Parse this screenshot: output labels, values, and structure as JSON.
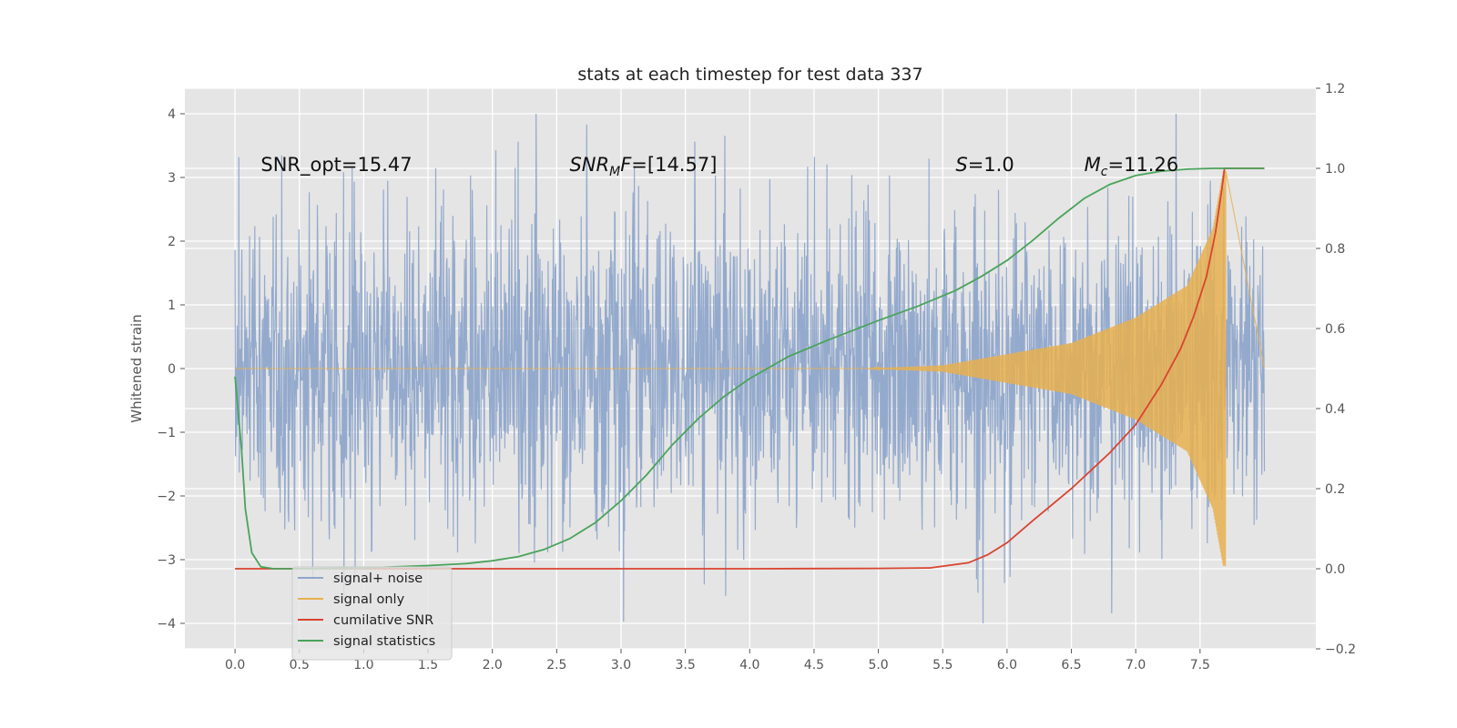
{
  "chart_data": {
    "type": "line",
    "title": "stats at each timestep for test data 337",
    "ylabel": "Whitened strain",
    "xlim": [
      -0.39,
      8.4
    ],
    "ylim": [
      -4.4,
      4.4
    ],
    "y2lim": [
      -0.2,
      1.2
    ],
    "grid": true,
    "legend_position": "lower-left",
    "x_ticks": [
      0.0,
      0.5,
      1.0,
      1.5,
      2.0,
      2.5,
      3.0,
      3.5,
      4.0,
      4.5,
      5.0,
      5.5,
      6.0,
      6.5,
      7.0,
      7.5
    ],
    "x_tick_labels": [
      "0.0",
      "0.5",
      "1.0",
      "1.5",
      "2.0",
      "2.5",
      "3.0",
      "3.5",
      "4.0",
      "4.5",
      "5.0",
      "5.5",
      "6.0",
      "6.5",
      "7.0",
      "7.5"
    ],
    "y_ticks": [
      -4,
      -3,
      -2,
      -1,
      0,
      1,
      2,
      3,
      4
    ],
    "y_tick_labels": [
      "−4",
      "−3",
      "−2",
      "−1",
      "0",
      "1",
      "2",
      "3",
      "4"
    ],
    "y2_ticks": [
      -0.2,
      0.0,
      0.2,
      0.4,
      0.6,
      0.8,
      1.0,
      1.2
    ],
    "y2_tick_labels": [
      "−0.2",
      "0.0",
      "0.2",
      "0.4",
      "0.6",
      "0.8",
      "1.0",
      "1.2"
    ],
    "annotations": [
      {
        "x": 0.2,
        "y": 3.2,
        "segments": [
          {
            "t": "SNR_opt=15.47",
            "i": false
          }
        ]
      },
      {
        "x": 2.6,
        "y": 3.2,
        "segments": [
          {
            "t": "SNR",
            "i": true
          },
          {
            "t": "M",
            "i": true,
            "sub": true
          },
          {
            "t": "F",
            "i": true
          },
          {
            "t": "=[14.57]",
            "i": false
          }
        ]
      },
      {
        "x": 5.6,
        "y": 3.2,
        "segments": [
          {
            "t": "S",
            "i": true
          },
          {
            "t": "=1.0",
            "i": false
          }
        ]
      },
      {
        "x": 6.6,
        "y": 3.2,
        "segments": [
          {
            "t": "M",
            "i": true
          },
          {
            "t": "c",
            "i": true,
            "sub": true
          },
          {
            "t": "=11.26",
            "i": false
          }
        ]
      }
    ],
    "series": [
      {
        "name": "signal+ noise",
        "color": "#8fa6cb",
        "axis": "left",
        "kind": "noise",
        "x_range": [
          0.0,
          8.0
        ],
        "typical_range": [
          -2.5,
          2.5
        ],
        "extreme_range": [
          -4.0,
          4.0
        ]
      },
      {
        "name": "signal only",
        "color": "#e8b04f",
        "axis": "left",
        "kind": "chirp",
        "x_range": [
          0.0,
          7.7
        ],
        "peak_amplitude": 3.1,
        "chirp_envelope": [
          [
            5.5,
            0.05
          ],
          [
            6.5,
            0.4
          ],
          [
            7.0,
            0.8
          ],
          [
            7.4,
            1.3
          ],
          [
            7.6,
            2.2
          ],
          [
            7.68,
            3.1
          ]
        ]
      },
      {
        "name": "cumilative SNR",
        "color": "#d9442f",
        "axis": "right",
        "x": [
          0.0,
          1.0,
          2.0,
          3.0,
          4.0,
          5.0,
          5.4,
          5.7,
          5.85,
          6.0,
          6.2,
          6.5,
          6.8,
          7.0,
          7.2,
          7.35,
          7.45,
          7.55,
          7.62,
          7.67,
          7.69,
          8.0
        ],
        "y": [
          0.0,
          0.0,
          0.0,
          0.0,
          0.0,
          0.001,
          0.002,
          0.015,
          0.035,
          0.065,
          0.12,
          0.2,
          0.29,
          0.36,
          0.46,
          0.55,
          0.63,
          0.73,
          0.84,
          0.95,
          1.0,
          1.0
        ]
      },
      {
        "name": "signal statistics",
        "color": "#4aa35b",
        "axis": "right",
        "x": [
          0.0,
          0.05,
          0.08,
          0.13,
          0.2,
          0.3,
          0.5,
          1.0,
          1.5,
          1.8,
          2.0,
          2.2,
          2.4,
          2.6,
          2.8,
          3.0,
          3.2,
          3.4,
          3.6,
          3.8,
          4.0,
          4.3,
          4.6,
          5.0,
          5.3,
          5.6,
          5.8,
          6.0,
          6.2,
          6.4,
          6.6,
          6.8,
          7.0,
          7.2,
          7.4,
          7.6,
          7.8,
          8.0
        ],
        "y": [
          0.48,
          0.3,
          0.15,
          0.04,
          0.005,
          0.0,
          0.0,
          0.002,
          0.008,
          0.013,
          0.02,
          0.03,
          0.048,
          0.075,
          0.115,
          0.17,
          0.235,
          0.31,
          0.375,
          0.43,
          0.475,
          0.53,
          0.57,
          0.62,
          0.655,
          0.695,
          0.73,
          0.77,
          0.82,
          0.875,
          0.925,
          0.96,
          0.982,
          0.993,
          0.998,
          1.0,
          1.0,
          1.0
        ]
      }
    ]
  }
}
